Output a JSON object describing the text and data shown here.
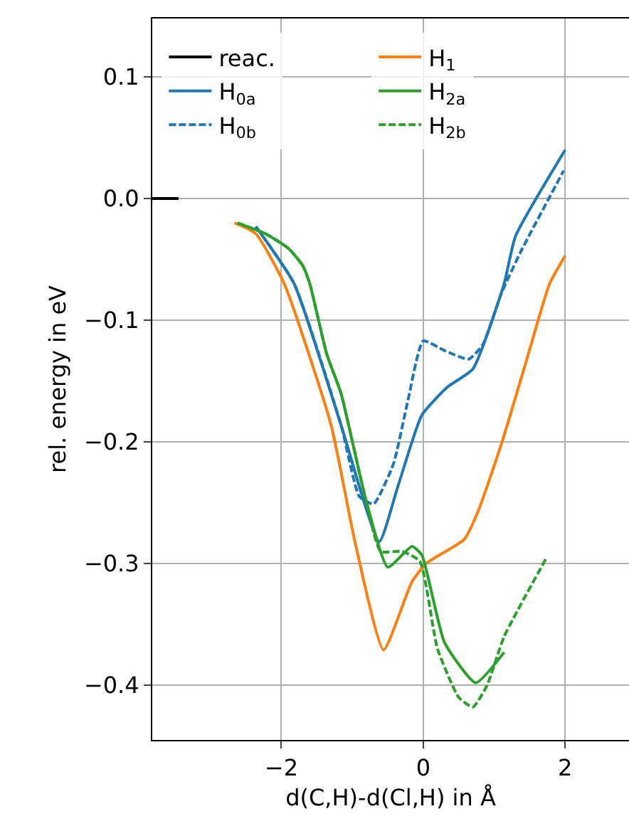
{
  "chart_data": {
    "type": "line",
    "xlabel": "d(C,H)-d(Cl,H) in Å",
    "ylabel": "rel. energy in eV",
    "xlim": [
      -3.82,
      2.9
    ],
    "ylim": [
      -0.445,
      0.148
    ],
    "xticks": [
      {
        "value": -2,
        "label": "−2"
      },
      0,
      2
    ],
    "yticks": [
      {
        "value": -0.4,
        "label": "−0.4"
      },
      {
        "value": -0.3,
        "label": "−0.3"
      },
      {
        "value": -0.2,
        "label": "−0.2"
      },
      {
        "value": -0.1,
        "label": "−0.1"
      },
      {
        "value": 0,
        "label": "0.0"
      },
      0.1
    ],
    "grid": true,
    "legend": "top left",
    "marker": "none",
    "series": [
      {
        "name": "reac.",
        "color": "#000000",
        "line_style": "solid",
        "x": [
          -3.82,
          -3.45
        ],
        "values": [
          0,
          0
        ]
      },
      {
        "name": "H$_{0a}$",
        "color": "#1f77b4",
        "line_style": "solid",
        "x": [
          -2.36,
          -1.82,
          -1.16,
          -0.62,
          -0.36,
          -0.02,
          0.34,
          0.7,
          1.14,
          1.3,
          2.0
        ],
        "values": [
          -0.023,
          -0.07,
          -0.186,
          -0.282,
          -0.237,
          -0.178,
          -0.155,
          -0.14,
          -0.07,
          -0.031,
          0.04
        ]
      },
      {
        "name": "H$_{0b}$",
        "color": "#1f77b4",
        "line_style": "dashed",
        "x": [
          -2.36,
          -1.82,
          -1.16,
          -0.9,
          -0.7,
          -0.42,
          -0.22,
          0,
          0.3,
          0.64,
          0.84,
          1.1,
          1.38,
          1.98
        ],
        "values": [
          -0.023,
          -0.07,
          -0.186,
          -0.245,
          -0.251,
          -0.218,
          -0.167,
          -0.117,
          -0.125,
          -0.132,
          -0.12,
          -0.078,
          -0.043,
          0.023
        ]
      },
      {
        "name": "H$_{1}$",
        "color": "#ff7f0e",
        "line_style": "solid",
        "x": [
          -2.66,
          -2.36,
          -1.96,
          -1.3,
          -0.96,
          -0.56,
          -0.16,
          0.04,
          0.58,
          0.78,
          1.1,
          1.44,
          1.78,
          2.0
        ],
        "values": [
          -0.02,
          -0.029,
          -0.07,
          -0.186,
          -0.283,
          -0.371,
          -0.315,
          -0.3,
          -0.28,
          -0.256,
          -0.202,
          -0.136,
          -0.07,
          -0.047
        ]
      },
      {
        "name": "H$_{2a}$",
        "color": "#2ca02c",
        "line_style": "solid",
        "x": [
          -2.62,
          -2.22,
          -1.9,
          -1.7,
          -1.6,
          -1.36,
          -1.16,
          -0.82,
          -0.5,
          -0.16,
          -0.02,
          0.3,
          0.74,
          1.14
        ],
        "values": [
          -0.02,
          -0.029,
          -0.041,
          -0.055,
          -0.07,
          -0.128,
          -0.16,
          -0.245,
          -0.303,
          -0.286,
          -0.293,
          -0.365,
          -0.398,
          -0.373
        ]
      },
      {
        "name": "H$_{2b}$",
        "color": "#2ca02c",
        "line_style": "dashed",
        "x": [
          -2.62,
          -2.22,
          -1.9,
          -1.7,
          -1.6,
          -1.36,
          -1.16,
          -0.82,
          -0.6,
          -0.3,
          -0.05,
          0.2,
          0.5,
          0.7,
          0.9,
          1.14,
          1.74
        ],
        "values": [
          -0.02,
          -0.029,
          -0.041,
          -0.055,
          -0.07,
          -0.128,
          -0.16,
          -0.245,
          -0.29,
          -0.29,
          -0.298,
          -0.37,
          -0.41,
          -0.418,
          -0.4,
          -0.36,
          -0.295
        ]
      }
    ]
  }
}
